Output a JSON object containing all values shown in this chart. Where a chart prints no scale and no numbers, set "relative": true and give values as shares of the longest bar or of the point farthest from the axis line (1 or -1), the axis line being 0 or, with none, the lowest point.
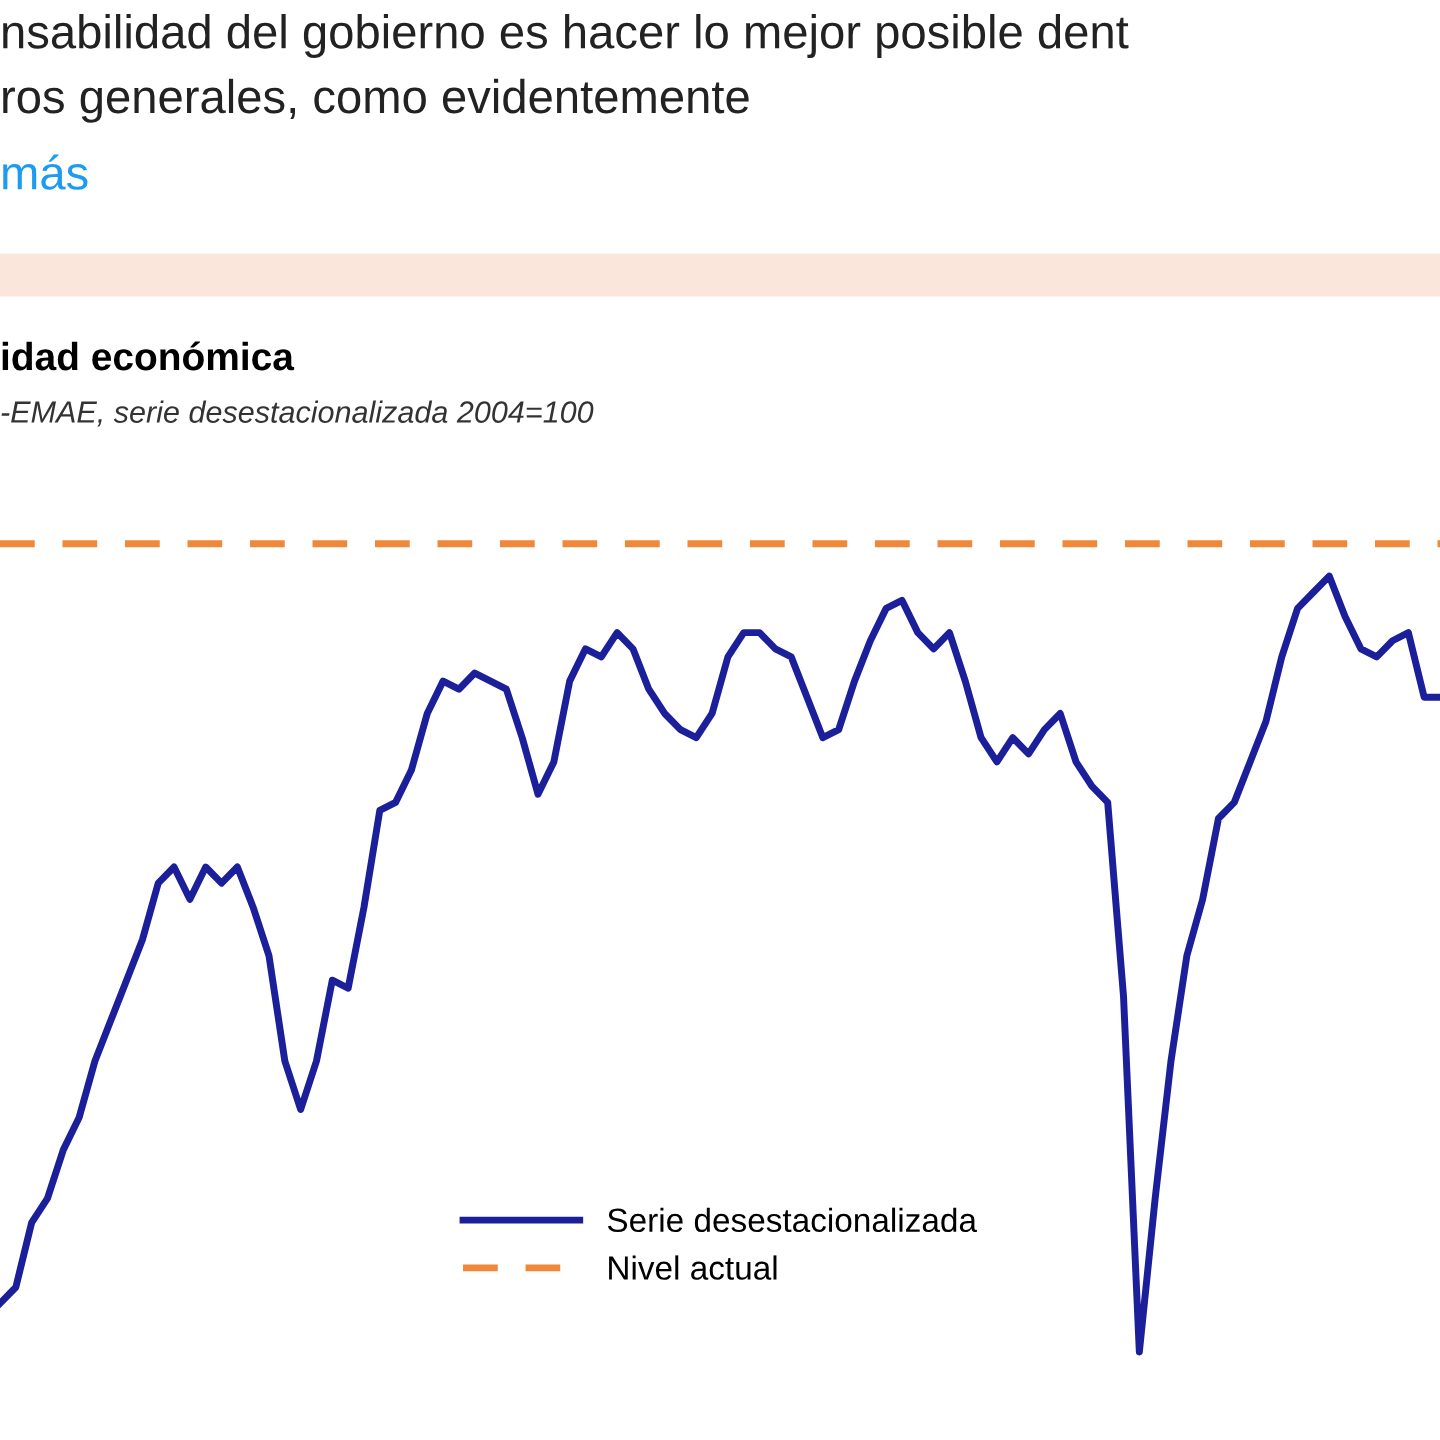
{
  "chart_data": {
    "type": "line",
    "title": "idad económica",
    "subtitle": "-EMAE, serie desestacionalizada 2004=100",
    "annotations": [
      "nsabilidad del gobierno es hacer lo mejor posible dent",
      "ros generales, como evidentemente",
      "más"
    ],
    "relative": true,
    "legend": "bottom",
    "categories": [
      null,
      null,
      null,
      null,
      null,
      null,
      null,
      null,
      null,
      null,
      null,
      null,
      null,
      null,
      null,
      null,
      null,
      null,
      null,
      null,
      null,
      null,
      null,
      null,
      null,
      null,
      null,
      null,
      null,
      null,
      null,
      null,
      null,
      null,
      null,
      null,
      null,
      null,
      null,
      null,
      null,
      null,
      null,
      null,
      null,
      null,
      null,
      null,
      null,
      null,
      null,
      null,
      null,
      null,
      null,
      null,
      null,
      null,
      null,
      null,
      null,
      null,
      null,
      null,
      null,
      null,
      null,
      null,
      null,
      null,
      null,
      null,
      null,
      null,
      null,
      null,
      null,
      null,
      null,
      null,
      null,
      null,
      null,
      null,
      null,
      null,
      null,
      null,
      null,
      null,
      null,
      null
    ],
    "series": [
      {
        "name": "Serie desestacionalizada",
        "color": "#1c1f9a",
        "line_style": "solid",
        "values": [
          0.06,
          0.08,
          0.16,
          0.19,
          0.25,
          0.29,
          0.36,
          0.41,
          0.46,
          0.51,
          0.58,
          0.6,
          0.56,
          0.6,
          0.58,
          0.6,
          0.55,
          0.49,
          0.36,
          0.3,
          0.36,
          0.46,
          0.45,
          0.55,
          0.67,
          0.68,
          0.72,
          0.79,
          0.83,
          0.82,
          0.84,
          0.83,
          0.82,
          0.76,
          0.69,
          0.73,
          0.83,
          0.87,
          0.86,
          0.89,
          0.87,
          0.82,
          0.79,
          0.77,
          0.76,
          0.79,
          0.86,
          0.89,
          0.89,
          0.87,
          0.86,
          0.81,
          0.76,
          0.77,
          0.83,
          0.88,
          0.92,
          0.93,
          0.89,
          0.87,
          0.89,
          0.83,
          0.76,
          0.73,
          0.76,
          0.74,
          0.77,
          0.79,
          0.73,
          0.7,
          0.68,
          0.44,
          0,
          0.19,
          0.36,
          0.49,
          0.56,
          0.66,
          0.68,
          0.73,
          0.78,
          0.86,
          0.92,
          0.94,
          0.96,
          0.91,
          0.87,
          0.86,
          0.88,
          0.89,
          0.81,
          0.81
        ]
      },
      {
        "name": "Nivel actual",
        "color": "#f0883a",
        "line_style": "dashed",
        "values": [
          1,
          1,
          1,
          1,
          1,
          1,
          1,
          1,
          1,
          1,
          1,
          1,
          1,
          1,
          1,
          1,
          1,
          1,
          1,
          1,
          1,
          1,
          1,
          1,
          1,
          1,
          1,
          1,
          1,
          1,
          1,
          1,
          1,
          1,
          1,
          1,
          1,
          1,
          1,
          1,
          1,
          1,
          1,
          1,
          1,
          1,
          1,
          1,
          1,
          1,
          1,
          1,
          1,
          1,
          1,
          1,
          1,
          1,
          1,
          1,
          1,
          1,
          1,
          1,
          1,
          1,
          1,
          1,
          1,
          1,
          1,
          1,
          1,
          1,
          1,
          1,
          1,
          1,
          1,
          1,
          1,
          1,
          1,
          1,
          1,
          1,
          1,
          1,
          1,
          1,
          1,
          1
        ]
      }
    ]
  }
}
